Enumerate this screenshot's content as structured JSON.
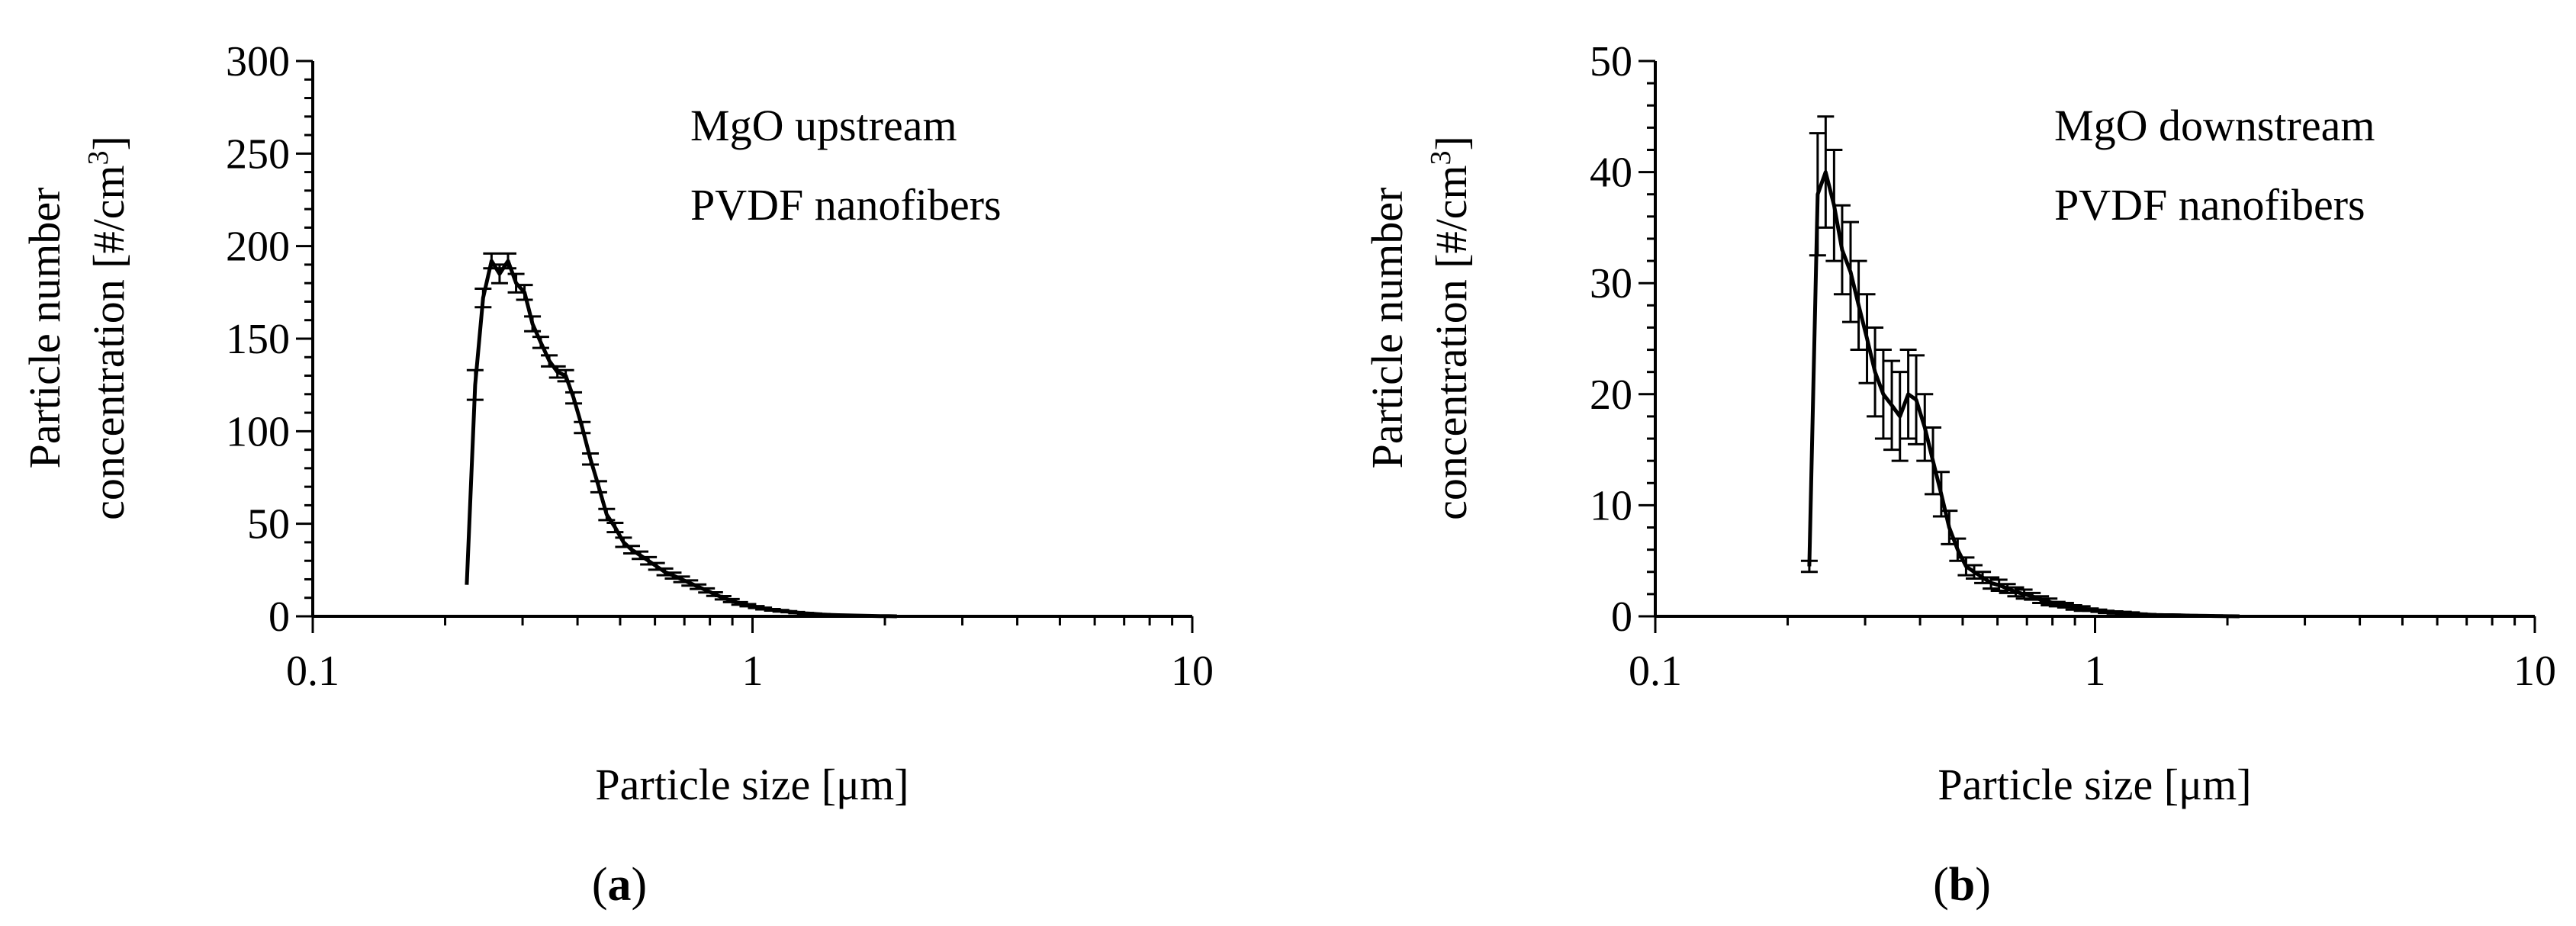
{
  "chart_data": [
    {
      "type": "line",
      "panel_label": "a",
      "ylabel_line1": "Particle number",
      "ylabel_line2": "concentration [#/cm",
      "ylabel_sup": "3",
      "ylabel_close": "]",
      "xlabel": "Particle size [μm]",
      "annotation": [
        "MgO upstream",
        "PVDF nanofibers"
      ],
      "x_scale": "log",
      "xlim": [
        0.1,
        10
      ],
      "ylim": [
        0,
        300
      ],
      "yticks": [
        0,
        50,
        100,
        150,
        200,
        250,
        300
      ],
      "xtick_labels": [
        "0.1",
        "1",
        "10"
      ],
      "legend": "none",
      "grid": false,
      "series": [
        {
          "x": [
            0.224,
            0.234,
            0.244,
            0.255,
            0.266,
            0.278,
            0.29,
            0.303,
            0.316,
            0.33,
            0.345,
            0.36,
            0.376,
            0.392,
            0.41,
            0.428,
            0.447,
            0.466,
            0.487,
            0.509,
            0.531,
            0.555,
            0.58,
            0.605,
            0.632,
            0.66,
            0.69,
            0.72,
            0.752,
            0.786,
            0.82,
            0.857,
            0.895,
            0.935,
            0.976,
            1.02,
            1.06,
            1.11,
            1.16,
            1.21,
            1.26,
            1.32,
            1.38,
            1.44,
            1.5,
            1.57,
            1.64,
            1.71,
            1.79,
            1.87,
            1.95,
            2.04,
            2.13
          ],
          "y": [
            17,
            125,
            172,
            192,
            185,
            192,
            180,
            175,
            158,
            148,
            138,
            132,
            130,
            118,
            102,
            85,
            70,
            55,
            48,
            40,
            36,
            33,
            30,
            27,
            24,
            22,
            20,
            18,
            16,
            14,
            12,
            10,
            8.5,
            7,
            6,
            5,
            4.2,
            3.5,
            3,
            2.5,
            2,
            1.6,
            1.3,
            1,
            0.8,
            0.6,
            0.5,
            0.4,
            0.3,
            0.2,
            0.1,
            0.1,
            0
          ],
          "err": [
            0,
            8,
            5,
            4,
            5,
            4,
            5,
            4,
            4,
            3,
            3,
            3,
            3,
            3,
            3,
            3,
            3,
            3,
            2.5,
            2.5,
            2,
            2,
            2,
            1.8,
            1.8,
            1.6,
            1.5,
            1.4,
            1.2,
            1.1,
            1,
            0.9,
            0.8,
            0.7,
            0.6,
            0.5,
            0.5,
            0.4,
            0.4,
            0.3,
            0.3,
            0.2,
            0.2,
            0.2,
            0.1,
            0.1,
            0.1,
            0.1,
            0.1,
            0.1,
            0.1,
            0.1,
            0
          ]
        }
      ]
    },
    {
      "type": "line",
      "panel_label": "b",
      "ylabel_line1": "Particle number",
      "ylabel_line2": "concentration [#/cm",
      "ylabel_sup": "3",
      "ylabel_close": "]",
      "xlabel": "Particle size [μm]",
      "annotation": [
        "MgO downstream",
        "PVDF nanofibers"
      ],
      "x_scale": "log",
      "xlim": [
        0.1,
        10
      ],
      "ylim": [
        0,
        50
      ],
      "yticks": [
        0,
        10,
        20,
        30,
        40,
        50
      ],
      "xtick_labels": [
        "0.1",
        "1",
        "10"
      ],
      "legend": "none",
      "grid": false,
      "series": [
        {
          "x": [
            0.224,
            0.234,
            0.244,
            0.255,
            0.266,
            0.278,
            0.29,
            0.303,
            0.316,
            0.33,
            0.345,
            0.36,
            0.376,
            0.392,
            0.41,
            0.428,
            0.447,
            0.466,
            0.487,
            0.509,
            0.531,
            0.555,
            0.58,
            0.605,
            0.632,
            0.66,
            0.69,
            0.72,
            0.752,
            0.786,
            0.82,
            0.857,
            0.895,
            0.935,
            0.976,
            1.02,
            1.06,
            1.11,
            1.16,
            1.21,
            1.26,
            1.32,
            1.38,
            1.44,
            1.5,
            1.57,
            1.64,
            1.71,
            1.79,
            1.87,
            1.95,
            2.04,
            2.13
          ],
          "y": [
            4.5,
            38,
            40,
            37,
            33,
            31,
            28,
            25,
            22,
            20,
            19,
            18,
            20,
            19.5,
            17,
            14,
            11,
            8,
            6,
            4.5,
            4,
            3.5,
            3,
            2.8,
            2.5,
            2.2,
            2,
            1.8,
            1.5,
            1.3,
            1.1,
            1,
            0.8,
            0.7,
            0.6,
            0.5,
            0.4,
            0.35,
            0.3,
            0.25,
            0.2,
            0.15,
            0.12,
            0.1,
            0.1,
            0.08,
            0.06,
            0.05,
            0.04,
            0.03,
            0.02,
            0.01,
            0
          ],
          "err": [
            0.5,
            5.5,
            5,
            5,
            4,
            4.5,
            4,
            4,
            4,
            4,
            4,
            4,
            4,
            4,
            3,
            3,
            2,
            1.5,
            1,
            0.8,
            0.6,
            0.5,
            0.5,
            0.5,
            0.4,
            0.4,
            0.4,
            0.3,
            0.3,
            0.3,
            0.2,
            0.2,
            0.2,
            0.2,
            0.1,
            0.1,
            0.1,
            0.1,
            0.1,
            0.1,
            0.05,
            0.05,
            0.05,
            0.05,
            0.05,
            0.05,
            0.05,
            0.05,
            0.05,
            0.05,
            0.05,
            0.05,
            0
          ]
        }
      ]
    }
  ]
}
